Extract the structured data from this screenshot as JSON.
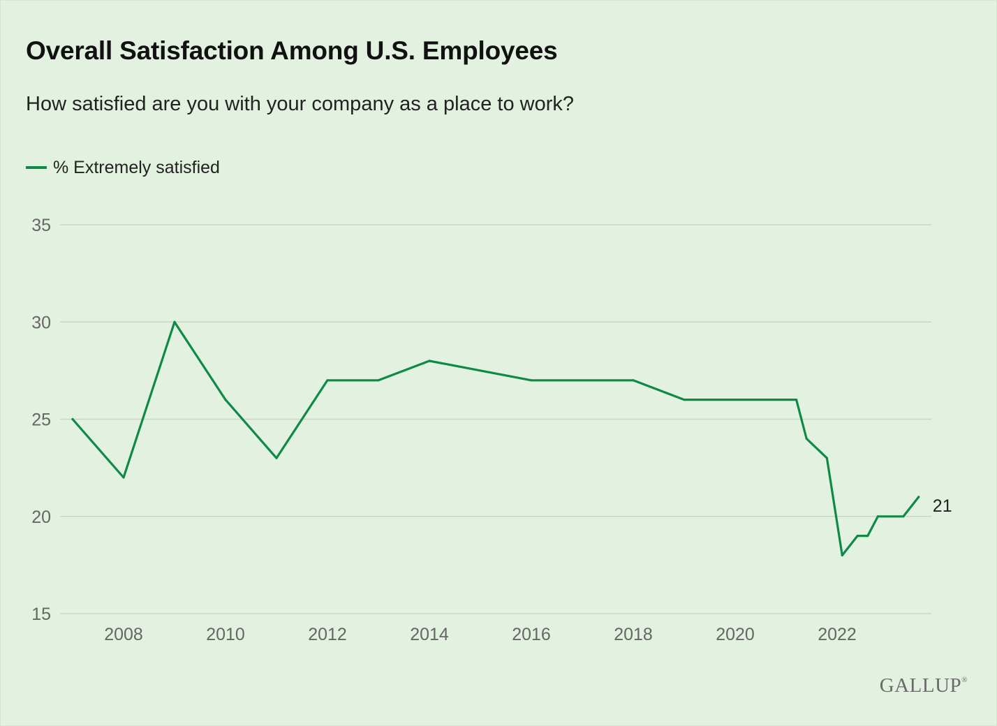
{
  "header": {
    "title": "Overall Satisfaction Among U.S. Employees",
    "subtitle": "How satisfied are you with your company as a place to work?"
  },
  "legend": {
    "label": "% Extremely satisfied"
  },
  "brand": {
    "name": "GALLUP",
    "mark": "®"
  },
  "colors": {
    "background": "#e3f1e0",
    "line": "#0e8a46",
    "grid": "#c9d8c5",
    "tick_text": "#666666"
  },
  "chart_data": {
    "type": "line",
    "title": "Overall Satisfaction Among U.S. Employees",
    "subtitle": "How satisfied are you with your company as a place to work?",
    "xlabel": "",
    "ylabel": "",
    "x_ticks": [
      "2008",
      "2010",
      "2012",
      "2014",
      "2016",
      "2018",
      "2020",
      "2022"
    ],
    "y_ticks": [
      "15",
      "20",
      "25",
      "30",
      "35"
    ],
    "xlim": [
      2006.9,
      2023.8
    ],
    "ylim": [
      15,
      35
    ],
    "grid": true,
    "legend_position": "top-left",
    "series": [
      {
        "name": "% Extremely satisfied",
        "end_label": "21",
        "points": [
          {
            "x": 2007.0,
            "y": 25
          },
          {
            "x": 2008.0,
            "y": 22
          },
          {
            "x": 2009.0,
            "y": 30
          },
          {
            "x": 2010.0,
            "y": 26
          },
          {
            "x": 2011.0,
            "y": 23
          },
          {
            "x": 2012.0,
            "y": 27
          },
          {
            "x": 2013.0,
            "y": 27
          },
          {
            "x": 2014.0,
            "y": 28
          },
          {
            "x": 2016.0,
            "y": 27
          },
          {
            "x": 2018.0,
            "y": 27
          },
          {
            "x": 2019.0,
            "y": 26
          },
          {
            "x": 2021.2,
            "y": 26
          },
          {
            "x": 2021.4,
            "y": 24
          },
          {
            "x": 2021.8,
            "y": 23
          },
          {
            "x": 2022.1,
            "y": 18
          },
          {
            "x": 2022.4,
            "y": 19
          },
          {
            "x": 2022.6,
            "y": 19
          },
          {
            "x": 2022.8,
            "y": 20
          },
          {
            "x": 2023.3,
            "y": 20
          },
          {
            "x": 2023.6,
            "y": 21
          }
        ]
      }
    ]
  }
}
